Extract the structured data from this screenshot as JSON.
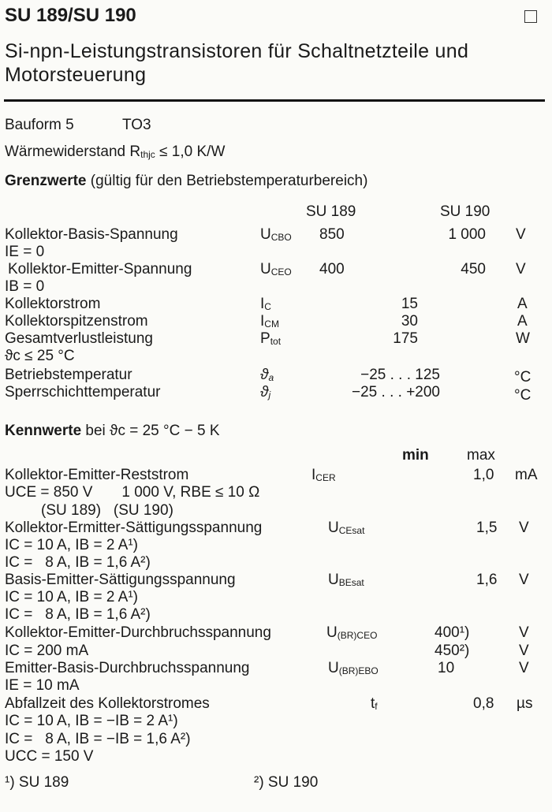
{
  "header": {
    "title": "SU 189/SU 190",
    "subtitle_line1": "Si-npn-Leistungstransistoren für Schaltnetzteile und",
    "subtitle_line2": "Motorsteuerung"
  },
  "general": {
    "bauform_label": "Bauform 5",
    "bauform_value": "TO3",
    "thermal_label": "Wärmewiderstand",
    "thermal_symbol": "R",
    "thermal_symbol_sub": "thjc",
    "thermal_value": "≤ 1,0 K/W"
  },
  "limits": {
    "heading": "Grenzwerte",
    "heading_note": "(gültig für den Betriebstemperaturbereich)",
    "col_su189": "SU 189",
    "col_su190": "SU 190",
    "rows": [
      {
        "label": "Kollektor-Basis-Spannung",
        "sym": "U",
        "sub": "CBO",
        "v1": "850",
        "v2": "1 000",
        "unit": "V",
        "cond": "IE = 0"
      },
      {
        "label": "Kollektor-Emitter-Spannung",
        "sym": "U",
        "sub": "CEO",
        "v1": "400",
        "v2": "450",
        "unit": "V",
        "cond": "IB = 0"
      },
      {
        "label": "Kollektorstrom",
        "sym": "I",
        "sub": "C",
        "v": "15",
        "unit": "A"
      },
      {
        "label": "Kollektorspitzenstrom",
        "sym": "I",
        "sub": "CM",
        "v": "30",
        "unit": "A"
      },
      {
        "label": "Gesamtverlustleistung",
        "sym": "P",
        "sub": "tot",
        "v": "175",
        "unit": "W",
        "cond": "ϑc ≤ 25 °C"
      },
      {
        "label": "Betriebstemperatur",
        "sym": "ϑ",
        "sub": "a",
        "v": "−25 . . . 125",
        "unit": "°C"
      },
      {
        "label": "Sperrschichttemperatur",
        "sym": "ϑ",
        "sub": "j",
        "v": "−25 . . . +200",
        "unit": "°C"
      }
    ]
  },
  "characteristics": {
    "heading": "Kennwerte",
    "heading_note": "bei ϑc = 25 °C − 5 K",
    "col_min": "min",
    "col_max": "max",
    "rows": [
      {
        "label": "Kollektor-Emitter-Reststrom",
        "sym": "I",
        "sub": "CER",
        "max": "1,0",
        "unit": "mA",
        "cond1": "UCE = 850 V       1 000 V, RBE ≤ 10 Ω",
        "cond2": "(SU 189)   (SU 190)"
      },
      {
        "label": "Kollektor-Ermitter-Sättigungsspannung",
        "sym": "U",
        "sub": "CEsat",
        "max": "1,5",
        "unit": "V",
        "cond1": "IC = 10 A, IB = 2 A¹)",
        "cond2": "IC =   8 A, IB = 1,6 A²)"
      },
      {
        "label": "Basis-Emitter-Sättigungsspannung",
        "sym": "U",
        "sub": "BEsat",
        "max": "1,6",
        "unit": "V",
        "cond1": "IC = 10 A, IB = 2 A¹)",
        "cond2": "IC =   8 A, IB = 1,6 A²)"
      },
      {
        "label": "Kollektor-Emitter-Durchbruchsspannung",
        "sym": "U",
        "sub": "(BR)CEO",
        "min1": "400¹)",
        "min2": "450²)",
        "unit": "V",
        "cond1": "IC = 200 mA"
      },
      {
        "label": "Emitter-Basis-Durchbruchsspannung",
        "sym": "U",
        "sub": "(BR)EBO",
        "min": "10",
        "unit": "V",
        "cond1": "IE = 10 mA"
      },
      {
        "label": "Abfallzeit des Kollektorstromes",
        "sym": "t",
        "sub": "f",
        "max": "0,8",
        "unit": "µs",
        "cond1": "IC = 10 A, IB = −IB = 2 A¹)",
        "cond2": "IC =   8 A, IB = −IB = 1,6 A²)",
        "cond3": "UCC = 150 V"
      }
    ]
  },
  "footnotes": {
    "note1": "¹) SU 189",
    "note2": "²) SU 190"
  }
}
